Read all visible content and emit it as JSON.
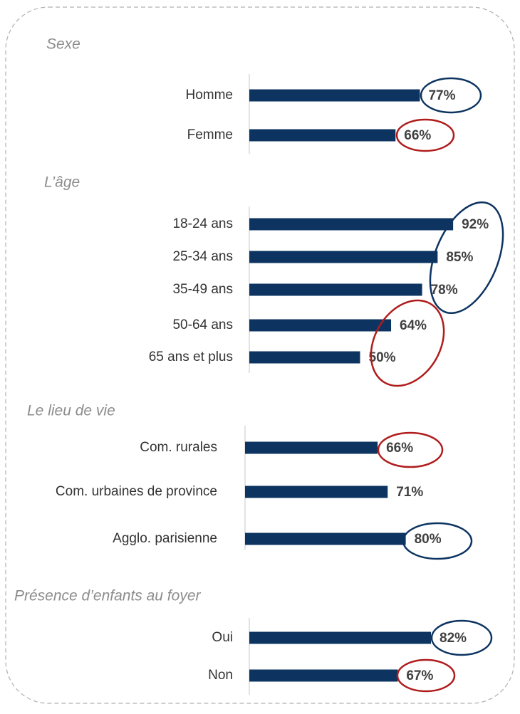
{
  "chart_data": [
    {
      "type": "bar",
      "title": "Sexe",
      "categories": [
        "Homme",
        "Femme"
      ],
      "values": [
        77,
        66
      ],
      "value_labels": [
        "77%",
        "66%"
      ],
      "color": "#0d3461"
    },
    {
      "type": "bar",
      "title": "L’âge",
      "categories": [
        "18-24 ans",
        "25-34 ans",
        "35-49 ans",
        "50-64 ans",
        "65 ans et plus"
      ],
      "values": [
        92,
        85,
        78,
        64,
        50
      ],
      "value_labels": [
        "92%",
        "85%",
        "78%",
        "64%",
        "50%"
      ],
      "color": "#0d3461"
    },
    {
      "type": "bar",
      "title": "Le lieu de vie",
      "categories": [
        "Com. rurales",
        "Com. urbaines de province",
        "Agglo. parisienne"
      ],
      "values": [
        66,
        71,
        80
      ],
      "value_labels": [
        "66%",
        "71%",
        "80%"
      ],
      "color": "#0d3461"
    },
    {
      "type": "bar",
      "title": "Présence d’enfants au foyer",
      "categories": [
        "Oui",
        "Non"
      ],
      "values": [
        82,
        67
      ],
      "value_labels": [
        "82%",
        "67%"
      ],
      "color": "#0d3461"
    }
  ]
}
